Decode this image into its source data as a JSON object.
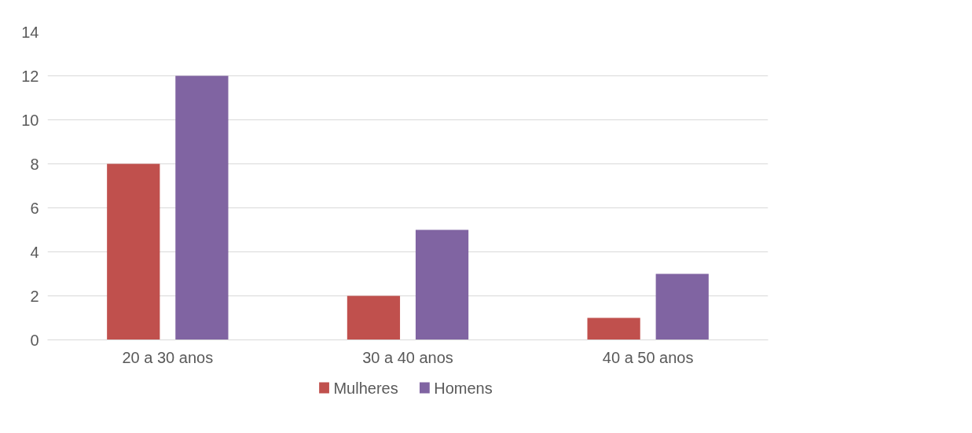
{
  "chart_data": {
    "type": "bar",
    "categories": [
      "20 a 30 anos",
      "30 a 40 anos",
      "40 a 50 anos"
    ],
    "series": [
      {
        "name": "Mulheres",
        "color": "#c0504d",
        "values": [
          8,
          2,
          1
        ]
      },
      {
        "name": "Homens",
        "color": "#8064a2",
        "values": [
          12,
          5,
          3
        ]
      }
    ],
    "ylim": [
      0,
      14
    ],
    "yticks": [
      0,
      2,
      4,
      6,
      8,
      10,
      12,
      14
    ],
    "grid": "y",
    "legend": "bottom"
  }
}
